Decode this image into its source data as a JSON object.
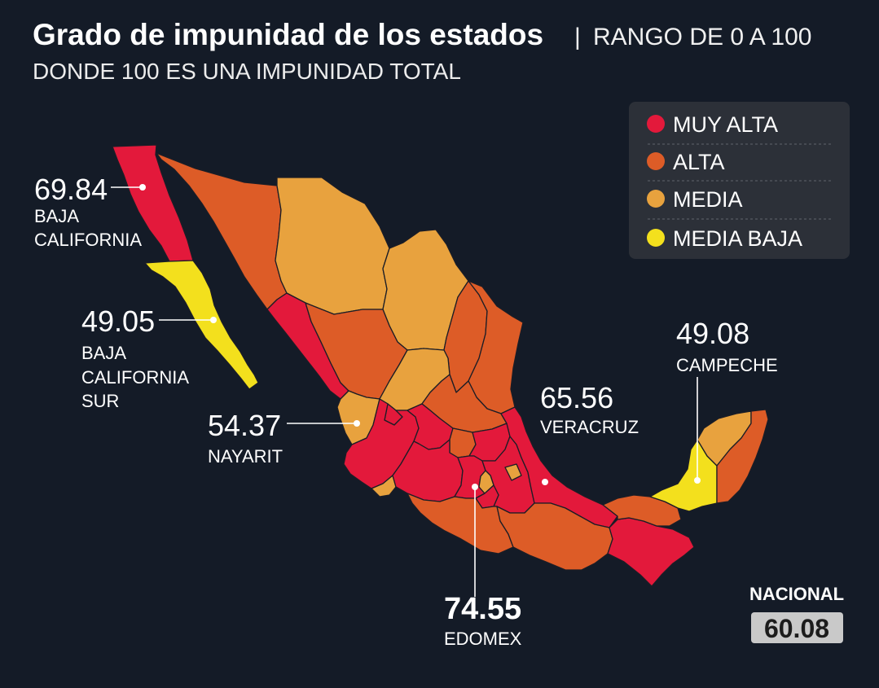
{
  "title": {
    "main": "Grado de impunidad de los estados",
    "separator": "|",
    "range": "RANGO DE 0 A 100",
    "subtitle": "DONDE 100 ES UNA IMPUNIDAD TOTAL"
  },
  "legend": [
    {
      "label": "MUY ALTA",
      "color": "#e3193b"
    },
    {
      "label": "ALTA",
      "color": "#dd5c27"
    },
    {
      "label": "MEDIA",
      "color": "#e8a23e"
    },
    {
      "label": "MEDIA BAJA",
      "color": "#f3e01d"
    }
  ],
  "map": {
    "background": "#141b27",
    "region_levels": [
      0,
      3,
      1,
      2,
      2,
      1,
      1,
      0,
      1,
      2,
      2,
      1,
      0,
      0,
      2,
      0,
      1,
      0,
      0,
      0,
      2,
      0,
      2,
      0,
      0,
      1,
      1,
      0,
      1,
      3,
      2,
      1
    ]
  },
  "callouts": [
    {
      "value": "69.84",
      "label": [
        "BAJA",
        "CALIFORNIA"
      ]
    },
    {
      "value": "49.05",
      "label": [
        "BAJA",
        "CALIFORNIA",
        "SUR"
      ]
    },
    {
      "value": "54.37",
      "label": [
        "NAYARIT"
      ]
    },
    {
      "value": "65.56",
      "label": [
        "VERACRUZ"
      ]
    },
    {
      "value": "49.08",
      "label": [
        "CAMPECHE"
      ]
    },
    {
      "value": "74.55",
      "label": [
        "EDOMEX"
      ]
    }
  ],
  "national": {
    "label": "NACIONAL",
    "value": "60.08"
  }
}
